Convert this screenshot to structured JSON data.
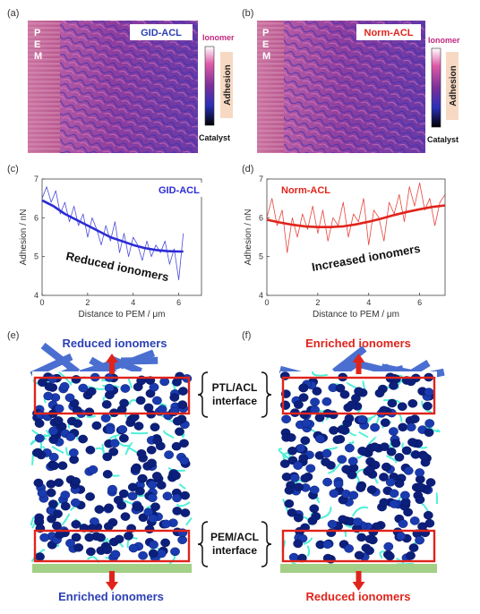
{
  "panels": {
    "a": {
      "label": "(a)",
      "sample": "GID-ACL",
      "pem": [
        "P",
        "E",
        "M"
      ]
    },
    "b": {
      "label": "(b)",
      "sample": "Norm-ACL",
      "pem": [
        "P",
        "E",
        "M"
      ]
    },
    "colorbar": {
      "top": "Ionomer",
      "bottom": "Catalyst",
      "side": "Adhesion"
    },
    "e": {
      "label": "(e)",
      "top_text": "Reduced ionomers",
      "bottom_text": "Enriched ionomers"
    },
    "f": {
      "label": "(f)",
      "top_text": "Enriched ionomers",
      "bottom_text": "Reduced ionomers"
    },
    "interfaces": {
      "ptl": [
        "PTL/ACL",
        "interface"
      ],
      "pem": [
        "PEM/ACL",
        "interface"
      ]
    }
  },
  "colors": {
    "gid": "#2b2bd6",
    "norm": "#e0241b",
    "brand_blue": "#2b3fb5",
    "ionomer_cyan": "#4ff0d8"
  },
  "chart_data": [
    {
      "type": "line",
      "panel_label": "(c)",
      "legend": "GID-ACL",
      "annotation": "Reduced ionomers",
      "xlabel": "Distance to PEM / μm",
      "ylabel": "Adhesion / nN",
      "xlim": [
        0,
        7
      ],
      "ylim": [
        4,
        7
      ],
      "xticks": [
        0,
        2,
        4,
        6
      ],
      "yticks": [
        4,
        5,
        6,
        7
      ],
      "series": [
        {
          "style": "raw",
          "x": [
            0,
            0.2,
            0.4,
            0.6,
            0.8,
            1.0,
            1.2,
            1.4,
            1.6,
            1.8,
            2.0,
            2.2,
            2.4,
            2.6,
            2.8,
            3.0,
            3.2,
            3.4,
            3.6,
            3.8,
            4.0,
            4.2,
            4.4,
            4.6,
            4.8,
            5.0,
            5.2,
            5.4,
            5.6,
            5.8,
            6.0,
            6.2
          ],
          "y": [
            6.5,
            6.8,
            6.4,
            6.7,
            6.1,
            6.4,
            5.9,
            6.3,
            5.8,
            6.1,
            5.5,
            6.0,
            5.7,
            5.3,
            5.8,
            5.4,
            5.9,
            5.1,
            5.6,
            5.0,
            5.5,
            5.3,
            4.9,
            5.4,
            5.0,
            5.3,
            5.1,
            5.4,
            4.8,
            5.2,
            4.4,
            5.6
          ]
        },
        {
          "style": "fit",
          "x": [
            0,
            0.5,
            1,
            1.5,
            2,
            2.5,
            3,
            3.5,
            4,
            4.5,
            5,
            5.5,
            6,
            6.2
          ],
          "y": [
            6.45,
            6.3,
            6.1,
            5.95,
            5.8,
            5.65,
            5.5,
            5.4,
            5.3,
            5.22,
            5.17,
            5.14,
            5.13,
            5.13
          ]
        }
      ]
    },
    {
      "type": "line",
      "panel_label": "(d)",
      "legend": "Norm-ACL",
      "annotation": "Increased ionomers",
      "xlabel": "Distance to PEM / μm",
      "ylabel": "Adhesion / nN",
      "xlim": [
        0,
        7
      ],
      "ylim": [
        4,
        7
      ],
      "xticks": [
        0,
        2,
        4,
        6
      ],
      "yticks": [
        4,
        5,
        6,
        7
      ],
      "series": [
        {
          "style": "raw",
          "x": [
            0,
            0.2,
            0.4,
            0.6,
            0.8,
            1.0,
            1.2,
            1.4,
            1.6,
            1.8,
            2.0,
            2.2,
            2.4,
            2.6,
            2.8,
            3.0,
            3.2,
            3.4,
            3.6,
            3.8,
            4.0,
            4.2,
            4.4,
            4.6,
            4.8,
            5.0,
            5.2,
            5.4,
            5.6,
            5.8,
            6.0,
            6.2,
            6.4,
            6.6,
            6.8,
            7.0
          ],
          "y": [
            6.0,
            6.5,
            5.8,
            6.2,
            5.1,
            6.0,
            5.5,
            6.1,
            5.7,
            6.3,
            5.6,
            6.2,
            5.4,
            6.0,
            5.8,
            6.4,
            5.5,
            6.1,
            5.9,
            6.5,
            5.3,
            6.2,
            6.0,
            5.4,
            6.4,
            6.1,
            6.6,
            5.9,
            6.8,
            6.3,
            6.9,
            6.2,
            6.5,
            5.8,
            6.4,
            6.6
          ]
        },
        {
          "style": "fit",
          "x": [
            0,
            0.5,
            1,
            1.5,
            2,
            2.5,
            3,
            3.5,
            4,
            4.5,
            5,
            5.5,
            6,
            6.5,
            7
          ],
          "y": [
            5.95,
            5.88,
            5.82,
            5.78,
            5.76,
            5.76,
            5.78,
            5.83,
            5.9,
            5.98,
            6.07,
            6.15,
            6.22,
            6.28,
            6.32
          ]
        }
      ]
    }
  ]
}
